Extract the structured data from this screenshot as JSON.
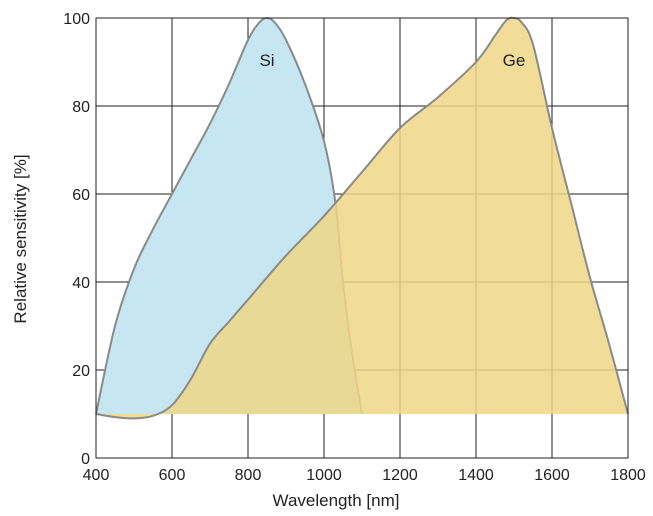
{
  "chart_data": {
    "type": "area",
    "title": "",
    "xlabel": "Wavelength [nm]",
    "ylabel": "Relative sensitivity [%]",
    "xlim": [
      400,
      1800
    ],
    "ylim": [
      0,
      100
    ],
    "xticks": [
      "400",
      "600",
      "800",
      "1000",
      "1200",
      "1400",
      "1600",
      "1800"
    ],
    "yticks": [
      "0",
      "20",
      "40",
      "60",
      "80",
      "100"
    ],
    "grid": true,
    "legend": "none",
    "series": [
      {
        "name": "Si",
        "color": "#c6e6f2",
        "edge_color": "#8a8a8a",
        "baseline": 10,
        "x": [
          400,
          450,
          500,
          550,
          600,
          650,
          700,
          750,
          800,
          830,
          850,
          870,
          900,
          950,
          1000,
          1030,
          1050,
          1070,
          1100
        ],
        "y": [
          10,
          30,
          43,
          52,
          60,
          68,
          76,
          85,
          95,
          99,
          100,
          99,
          95,
          85,
          72,
          58,
          40,
          26,
          10
        ]
      },
      {
        "name": "Ge",
        "color": "#efd686",
        "edge_color": "#8a8a8a",
        "baseline": 10,
        "x": [
          400,
          450,
          500,
          550,
          600,
          650,
          700,
          750,
          800,
          900,
          1000,
          1100,
          1200,
          1300,
          1400,
          1450,
          1480,
          1500,
          1520,
          1550,
          1600,
          1650,
          1700,
          1750,
          1800
        ],
        "y": [
          10,
          9.3,
          9,
          9.6,
          12,
          18,
          26,
          31,
          36,
          46,
          55,
          65,
          75,
          82,
          90,
          96,
          99.5,
          100,
          99,
          94,
          75,
          58,
          41,
          26,
          10
        ]
      }
    ]
  }
}
